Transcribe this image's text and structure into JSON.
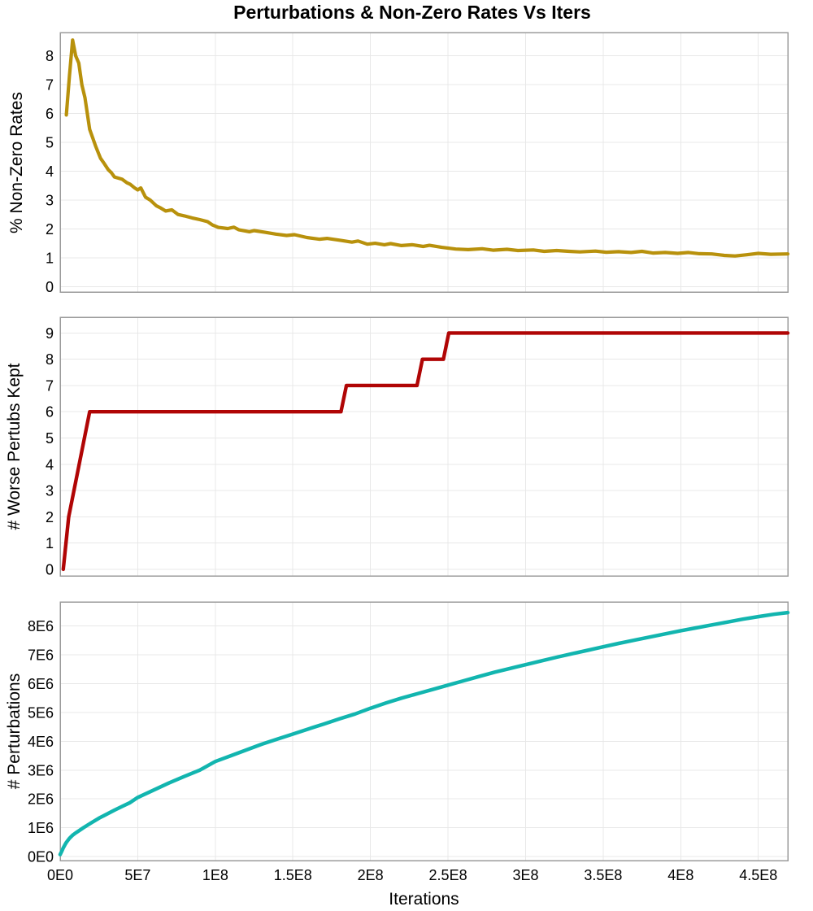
{
  "title": "Perturbations & Non-Zero Rates Vs Iters",
  "x_axis": {
    "label": "Iterations",
    "min": 0,
    "max": 469000000.0,
    "ticks": [
      [
        0,
        "0E0"
      ],
      [
        50000000.0,
        "5E7"
      ],
      [
        100000000.0,
        "1E8"
      ],
      [
        150000000.0,
        "1.5E8"
      ],
      [
        200000000.0,
        "2E8"
      ],
      [
        250000000.0,
        "2.5E8"
      ],
      [
        300000000.0,
        "3E8"
      ],
      [
        350000000.0,
        "3.5E8"
      ],
      [
        400000000.0,
        "4E8"
      ],
      [
        450000000.0,
        "4.5E8"
      ]
    ]
  },
  "colors": {
    "nonzero_rates_line": "#b8910c",
    "worse_perturbs_line": "#b00505",
    "perturbations_line": "#12b5af",
    "grid": "#e8e8e8",
    "border": "#9b9b9b",
    "text": "#000000",
    "background": "#ffffff"
  },
  "chart_data": [
    {
      "type": "line",
      "name": "nonzero-rates",
      "title": "",
      "ylabel": "% Non-Zero Rates",
      "legend": "none",
      "grid": true,
      "y_min": -0.19,
      "y_max": 8.81,
      "y_ticks": [
        [
          0,
          "0"
        ],
        [
          1,
          "1"
        ],
        [
          2,
          "2"
        ],
        [
          3,
          "3"
        ],
        [
          4,
          "4"
        ],
        [
          5,
          "5"
        ],
        [
          6,
          "6"
        ],
        [
          7,
          "7"
        ],
        [
          8,
          "8"
        ]
      ],
      "points": [
        [
          4000000.0,
          5.95
        ],
        [
          6000000.0,
          7.3
        ],
        [
          8000000.0,
          8.55
        ],
        [
          10000000.0,
          8.0
        ],
        [
          12000000.0,
          7.75
        ],
        [
          14000000.0,
          7.0
        ],
        [
          16000000.0,
          6.55
        ],
        [
          19000000.0,
          5.45
        ],
        [
          21000000.0,
          5.15
        ],
        [
          23000000.0,
          4.85
        ],
        [
          26000000.0,
          4.45
        ],
        [
          28000000.0,
          4.3
        ],
        [
          31000000.0,
          4.05
        ],
        [
          33000000.0,
          3.95
        ],
        [
          35000000.0,
          3.8
        ],
        [
          38000000.0,
          3.75
        ],
        [
          40000000.0,
          3.72
        ],
        [
          43000000.0,
          3.6
        ],
        [
          45000000.0,
          3.55
        ],
        [
          48000000.0,
          3.42
        ],
        [
          50000000.0,
          3.35
        ],
        [
          52000000.0,
          3.42
        ],
        [
          55000000.0,
          3.1
        ],
        [
          58000000.0,
          3.0
        ],
        [
          62000000.0,
          2.8
        ],
        [
          65000000.0,
          2.72
        ],
        [
          68000000.0,
          2.62
        ],
        [
          72000000.0,
          2.66
        ],
        [
          76000000.0,
          2.5
        ],
        [
          80000000.0,
          2.45
        ],
        [
          85000000.0,
          2.38
        ],
        [
          90000000.0,
          2.32
        ],
        [
          95000000.0,
          2.25
        ],
        [
          98000000.0,
          2.14
        ],
        [
          102000000.0,
          2.05
        ],
        [
          108000000.0,
          2.01
        ],
        [
          112000000.0,
          2.06
        ],
        [
          115000000.0,
          1.97
        ],
        [
          122000000.0,
          1.9
        ],
        [
          125000000.0,
          1.94
        ],
        [
          132000000.0,
          1.88
        ],
        [
          139000000.0,
          1.82
        ],
        [
          146000000.0,
          1.77
        ],
        [
          151000000.0,
          1.8
        ],
        [
          159000000.0,
          1.7
        ],
        [
          167000000.0,
          1.64
        ],
        [
          172000000.0,
          1.67
        ],
        [
          181000000.0,
          1.6
        ],
        [
          188000000.0,
          1.54
        ],
        [
          192000000.0,
          1.58
        ],
        [
          198000000.0,
          1.47
        ],
        [
          203000000.0,
          1.5
        ],
        [
          209000000.0,
          1.45
        ],
        [
          213000000.0,
          1.49
        ],
        [
          220000000.0,
          1.42
        ],
        [
          227000000.0,
          1.45
        ],
        [
          234000000.0,
          1.39
        ],
        [
          238000000.0,
          1.43
        ],
        [
          246000000.0,
          1.36
        ],
        [
          255000000.0,
          1.3
        ],
        [
          263000000.0,
          1.28
        ],
        [
          272000000.0,
          1.31
        ],
        [
          279000000.0,
          1.26
        ],
        [
          288000000.0,
          1.29
        ],
        [
          295000000.0,
          1.25
        ],
        [
          305000000.0,
          1.27
        ],
        [
          312000000.0,
          1.22
        ],
        [
          320000000.0,
          1.25
        ],
        [
          328000000.0,
          1.22
        ],
        [
          335000000.0,
          1.2
        ],
        [
          345000000.0,
          1.23
        ],
        [
          352000000.0,
          1.19
        ],
        [
          360000000.0,
          1.21
        ],
        [
          368000000.0,
          1.18
        ],
        [
          375000000.0,
          1.22
        ],
        [
          382000000.0,
          1.16
        ],
        [
          390000000.0,
          1.18
        ],
        [
          398000000.0,
          1.15
        ],
        [
          405000000.0,
          1.18
        ],
        [
          412000000.0,
          1.14
        ],
        [
          420000000.0,
          1.13
        ],
        [
          428000000.0,
          1.08
        ],
        [
          435000000.0,
          1.06
        ],
        [
          442000000.0,
          1.1
        ],
        [
          450000000.0,
          1.15
        ],
        [
          458000000.0,
          1.12
        ],
        [
          469000000.0,
          1.13
        ]
      ]
    },
    {
      "type": "line",
      "name": "worse-perturbs-kept",
      "title": "",
      "ylabel": "# Worse Pertubs Kept",
      "legend": "none",
      "grid": true,
      "y_min": -0.25,
      "y_max": 9.6,
      "y_ticks": [
        [
          0,
          "0"
        ],
        [
          1,
          "1"
        ],
        [
          2,
          "2"
        ],
        [
          3,
          "3"
        ],
        [
          4,
          "4"
        ],
        [
          5,
          "5"
        ],
        [
          6,
          "6"
        ],
        [
          7,
          "7"
        ],
        [
          8,
          "8"
        ],
        [
          9,
          "9"
        ]
      ],
      "points": [
        [
          2000000.0,
          0
        ],
        [
          5500000.0,
          2
        ],
        [
          19000000.0,
          6
        ],
        [
          181000000.0,
          6
        ],
        [
          184500000.0,
          7
        ],
        [
          230000000.0,
          7
        ],
        [
          233500000.0,
          8
        ],
        [
          247000000.0,
          8
        ],
        [
          250500000.0,
          9
        ],
        [
          469000000.0,
          9
        ]
      ]
    },
    {
      "type": "line",
      "name": "perturbations",
      "title": "",
      "ylabel": "# Perturbations",
      "legend": "none",
      "grid": true,
      "y_min": -140000.0,
      "y_max": 8840000.0,
      "y_ticks": [
        [
          0,
          "0E0"
        ],
        [
          1000000.0,
          "1E6"
        ],
        [
          2000000.0,
          "2E6"
        ],
        [
          3000000.0,
          "3E6"
        ],
        [
          4000000.0,
          "4E6"
        ],
        [
          5000000.0,
          "5E6"
        ],
        [
          6000000.0,
          "6E6"
        ],
        [
          7000000.0,
          "7E6"
        ],
        [
          8000000.0,
          "8E6"
        ]
      ],
      "points": [
        [
          0,
          70000.0
        ],
        [
          1000000.0,
          180000.0
        ],
        [
          2000000.0,
          300000.0
        ],
        [
          3000000.0,
          400000.0
        ],
        [
          4000000.0,
          490000.0
        ],
        [
          6000000.0,
          630000.0
        ],
        [
          8000000.0,
          740000.0
        ],
        [
          10000000.0,
          820000.0
        ],
        [
          12000000.0,
          890000.0
        ],
        [
          15000000.0,
          1000000.0
        ],
        [
          20000000.0,
          1170000.0
        ],
        [
          25000000.0,
          1330000.0
        ],
        [
          30000000.0,
          1470000.0
        ],
        [
          35000000.0,
          1610000.0
        ],
        [
          40000000.0,
          1740000.0
        ],
        [
          45000000.0,
          1870000.0
        ],
        [
          50000000.0,
          2050000.0
        ],
        [
          60000000.0,
          2300000.0
        ],
        [
          70000000.0,
          2550000.0
        ],
        [
          80000000.0,
          2780000.0
        ],
        [
          90000000.0,
          3000000.0
        ],
        [
          100000000.0,
          3300000.0
        ],
        [
          110000000.0,
          3500000.0
        ],
        [
          120000000.0,
          3700000.0
        ],
        [
          130000000.0,
          3900000.0
        ],
        [
          140000000.0,
          4080000.0
        ],
        [
          150000000.0,
          4250000.0
        ],
        [
          160000000.0,
          4430000.0
        ],
        [
          170000000.0,
          4600000.0
        ],
        [
          180000000.0,
          4780000.0
        ],
        [
          190000000.0,
          4950000.0
        ],
        [
          200000000.0,
          5150000.0
        ],
        [
          210000000.0,
          5330000.0
        ],
        [
          220000000.0,
          5500000.0
        ],
        [
          230000000.0,
          5650000.0
        ],
        [
          240000000.0,
          5800000.0
        ],
        [
          250000000.0,
          5950000.0
        ],
        [
          260000000.0,
          6100000.0
        ],
        [
          270000000.0,
          6250000.0
        ],
        [
          280000000.0,
          6400000.0
        ],
        [
          290000000.0,
          6530000.0
        ],
        [
          300000000.0,
          6660000.0
        ],
        [
          310000000.0,
          6790000.0
        ],
        [
          320000000.0,
          6920000.0
        ],
        [
          330000000.0,
          7040000.0
        ],
        [
          340000000.0,
          7160000.0
        ],
        [
          350000000.0,
          7280000.0
        ],
        [
          360000000.0,
          7400000.0
        ],
        [
          370000000.0,
          7510000.0
        ],
        [
          380000000.0,
          7620000.0
        ],
        [
          390000000.0,
          7730000.0
        ],
        [
          400000000.0,
          7840000.0
        ],
        [
          410000000.0,
          7940000.0
        ],
        [
          420000000.0,
          8040000.0
        ],
        [
          430000000.0,
          8140000.0
        ],
        [
          440000000.0,
          8240000.0
        ],
        [
          450000000.0,
          8330000.0
        ],
        [
          460000000.0,
          8410000.0
        ],
        [
          469000000.0,
          8470000.0
        ]
      ]
    }
  ]
}
